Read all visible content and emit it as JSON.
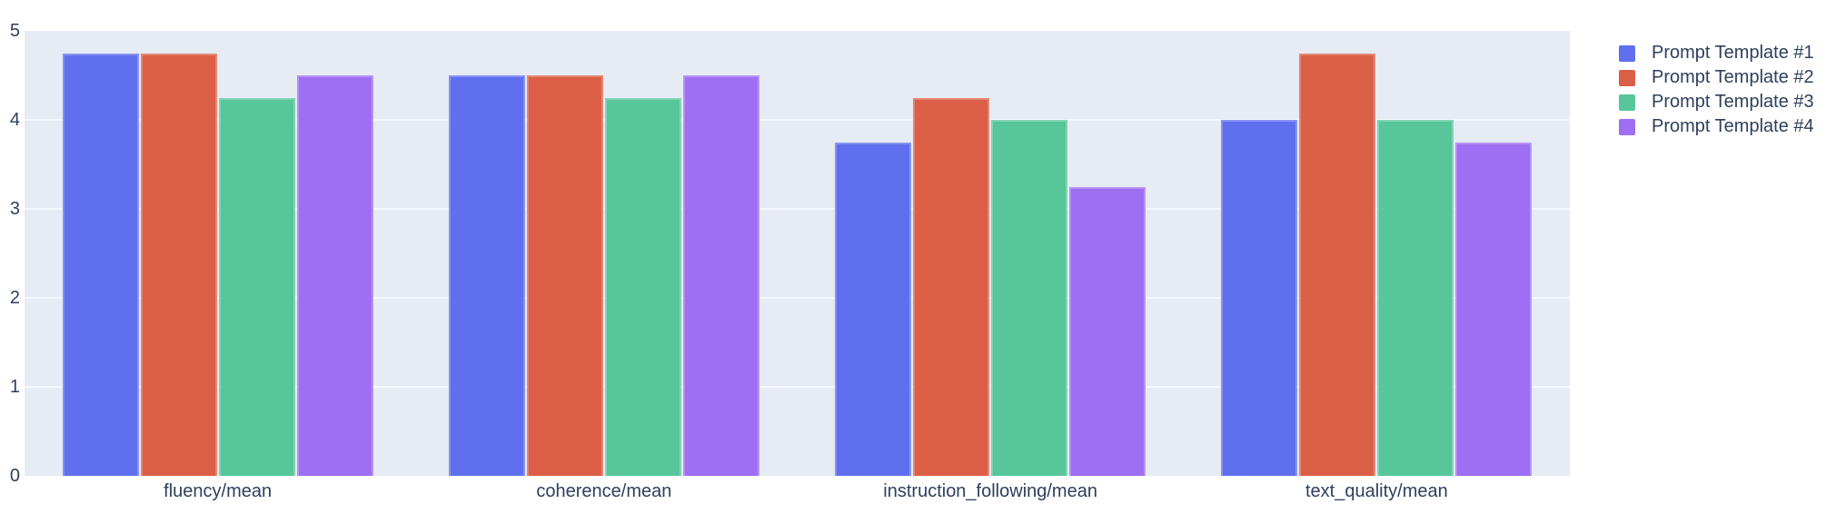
{
  "chart_data": {
    "type": "bar",
    "title": "",
    "xlabel": "",
    "ylabel": "",
    "categories": [
      "fluency/mean",
      "coherence/mean",
      "instruction_following/mean",
      "text_quality/mean"
    ],
    "series": [
      {
        "name": "Prompt Template #1",
        "color": "#5F6FEE",
        "values": [
          4.75,
          4.5,
          3.75,
          4.0
        ]
      },
      {
        "name": "Prompt Template #2",
        "color": "#DB5F46",
        "values": [
          4.75,
          4.5,
          4.25,
          4.75
        ]
      },
      {
        "name": "Prompt Template #3",
        "color": "#57C69A",
        "values": [
          4.25,
          4.25,
          4.0,
          4.0
        ]
      },
      {
        "name": "Prompt Template #4",
        "color": "#9E6FF2",
        "values": [
          4.5,
          4.5,
          3.25,
          3.75
        ]
      }
    ],
    "ylim": [
      0,
      5
    ],
    "yticks": [
      "0",
      "1",
      "2",
      "3",
      "4",
      "5"
    ],
    "grid": true,
    "legend_position": "top-right",
    "colors": {
      "plot_background": "#E6EBF4",
      "gridline": "#F5F8FC",
      "text": "#2E3F5C"
    }
  }
}
